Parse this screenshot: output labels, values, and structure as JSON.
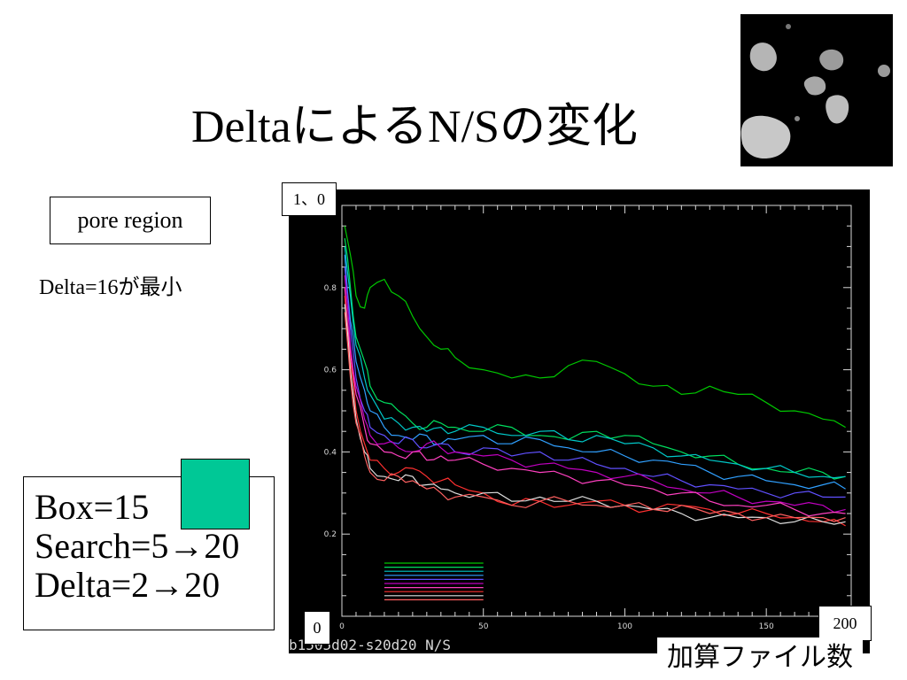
{
  "slide": {
    "title": "DeltaによるN/Sの変化",
    "pore_label": "pore region",
    "delta_note": "Delta=16が最小",
    "params": [
      "Box=15",
      "Search=5→20",
      "Delta=2→20"
    ],
    "swatch_color": "#00c896",
    "label_top": "1、0",
    "label_zero": "0",
    "label_max": "200",
    "label_x": "加算ファイル数"
  },
  "chart_data": {
    "type": "line",
    "caption": "b1505d02-s20d20 N/S",
    "xlim": [
      0,
      180
    ],
    "ylim": [
      0,
      1.0
    ],
    "xticks": [
      0,
      50,
      100,
      150
    ],
    "yticks": [
      0.2,
      0.4,
      0.6,
      0.8
    ],
    "x": [
      1,
      3,
      5,
      8,
      10,
      15,
      20,
      25,
      30,
      35,
      40,
      50,
      60,
      70,
      80,
      90,
      100,
      110,
      120,
      130,
      140,
      150,
      160,
      170,
      178
    ],
    "series": [
      {
        "color": "#00c800",
        "values": [
          0.95,
          0.88,
          0.78,
          0.75,
          0.8,
          0.82,
          0.78,
          0.73,
          0.68,
          0.65,
          0.63,
          0.6,
          0.58,
          0.58,
          0.61,
          0.62,
          0.59,
          0.56,
          0.54,
          0.56,
          0.54,
          0.52,
          0.5,
          0.48,
          0.46
        ]
      },
      {
        "color": "#00e060",
        "values": [
          0.92,
          0.8,
          0.68,
          0.62,
          0.56,
          0.52,
          0.5,
          0.47,
          0.46,
          0.47,
          0.46,
          0.45,
          0.46,
          0.44,
          0.43,
          0.45,
          0.44,
          0.42,
          0.4,
          0.39,
          0.37,
          0.36,
          0.35,
          0.35,
          0.34
        ]
      },
      {
        "color": "#00c8c8",
        "values": [
          0.9,
          0.78,
          0.66,
          0.58,
          0.54,
          0.48,
          0.47,
          0.46,
          0.45,
          0.46,
          0.45,
          0.46,
          0.44,
          0.45,
          0.43,
          0.44,
          0.42,
          0.41,
          0.39,
          0.38,
          0.37,
          0.36,
          0.35,
          0.34,
          0.34
        ]
      },
      {
        "color": "#30a0ff",
        "values": [
          0.88,
          0.72,
          0.62,
          0.55,
          0.5,
          0.46,
          0.44,
          0.43,
          0.44,
          0.42,
          0.43,
          0.44,
          0.42,
          0.43,
          0.41,
          0.4,
          0.39,
          0.38,
          0.37,
          0.35,
          0.34,
          0.33,
          0.32,
          0.32,
          0.31
        ]
      },
      {
        "color": "#6050ff",
        "values": [
          0.85,
          0.7,
          0.58,
          0.5,
          0.46,
          0.44,
          0.42,
          0.43,
          0.41,
          0.42,
          0.4,
          0.41,
          0.39,
          0.4,
          0.38,
          0.37,
          0.36,
          0.34,
          0.33,
          0.32,
          0.31,
          0.3,
          0.3,
          0.29,
          0.29
        ]
      },
      {
        "color": "#c000c0",
        "values": [
          0.83,
          0.66,
          0.56,
          0.48,
          0.44,
          0.42,
          0.41,
          0.4,
          0.42,
          0.41,
          0.4,
          0.39,
          0.38,
          0.37,
          0.36,
          0.35,
          0.34,
          0.33,
          0.31,
          0.3,
          0.29,
          0.28,
          0.27,
          0.27,
          0.26
        ]
      },
      {
        "color": "#ff40c0",
        "values": [
          0.8,
          0.64,
          0.54,
          0.46,
          0.42,
          0.4,
          0.39,
          0.4,
          0.38,
          0.39,
          0.38,
          0.37,
          0.36,
          0.35,
          0.34,
          0.33,
          0.32,
          0.31,
          0.3,
          0.28,
          0.27,
          0.27,
          0.26,
          0.25,
          0.25
        ]
      },
      {
        "color": "#ff3030",
        "values": [
          0.78,
          0.62,
          0.5,
          0.42,
          0.38,
          0.36,
          0.35,
          0.36,
          0.34,
          0.33,
          0.32,
          0.3,
          0.27,
          0.28,
          0.27,
          0.28,
          0.27,
          0.26,
          0.27,
          0.26,
          0.25,
          0.25,
          0.24,
          0.23,
          0.22
        ]
      },
      {
        "color": "#e0e0e0",
        "values": [
          0.76,
          0.6,
          0.48,
          0.4,
          0.36,
          0.34,
          0.33,
          0.34,
          0.32,
          0.31,
          0.3,
          0.3,
          0.28,
          0.29,
          0.28,
          0.28,
          0.27,
          0.26,
          0.25,
          0.24,
          0.24,
          0.24,
          0.23,
          0.23,
          0.23
        ]
      },
      {
        "color": "#ff6060",
        "values": [
          0.74,
          0.58,
          0.47,
          0.39,
          0.35,
          0.33,
          0.34,
          0.33,
          0.31,
          0.3,
          0.29,
          0.29,
          0.27,
          0.28,
          0.28,
          0.27,
          0.27,
          0.26,
          0.27,
          0.25,
          0.25,
          0.24,
          0.24,
          0.24,
          0.24
        ]
      }
    ]
  }
}
